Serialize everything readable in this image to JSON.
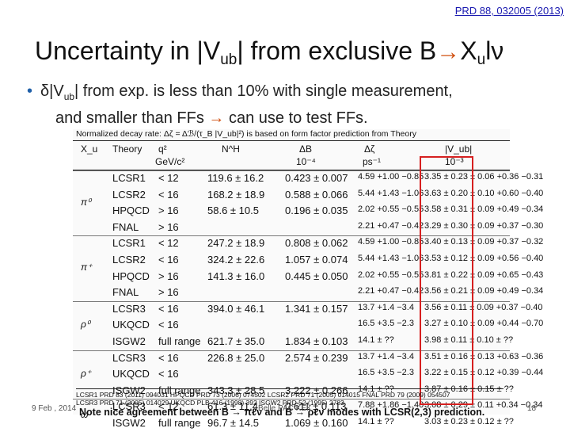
{
  "reference": "PRD 88, 032005 (2013)",
  "title": {
    "pre": "Uncertainty in |V",
    "sub": "ub",
    "mid": "| from exclusive B",
    "arrow": "→",
    "post_a": "X",
    "post_sub": "u",
    "post_b": "l",
    "nu": "ν"
  },
  "bullet": {
    "dot": "•",
    "delta": "δ|V",
    "sub": "ub",
    "line1_rest": "| from exp. is less than 10% with single measurement,",
    "line2_a": "and smaller than FFs",
    "arrow": "→",
    "line2_b": "can use to test FFs."
  },
  "table": {
    "note": "Normalized decay rate: Δζ = Δℬ/(τ_B |V_ub|²) is based on form factor prediction from Theory",
    "headers": {
      "xu": "X_u",
      "theory": "Theory",
      "q2": "q²",
      "q2_unit": "GeV/c²",
      "nH": "N^H",
      "dB": "ΔB",
      "dB_unit": "10⁻⁴",
      "dz": "Δζ",
      "dz_unit": "ps⁻¹",
      "vub": "|V_ub|",
      "vub_unit": "10⁻³"
    },
    "groups": [
      {
        "xu": "π⁰",
        "rows": [
          {
            "theory": "LCSR1",
            "q2": "< 12",
            "nh": "119.6 ± 16.2",
            "db": "0.423 ± 0.007",
            "dz": "4.59 +1.00 −0.85",
            "vub": "3.35 ± 0.23 ± 0.06 +0.36 −0.31"
          },
          {
            "theory": "LCSR2",
            "q2": "< 16",
            "nh": "168.2 ± 18.9",
            "db": "0.588 ± 0.066",
            "dz": "5.44 +1.43 −1.06",
            "vub": "3.63 ± 0.20 ± 0.10 +0.60 −0.40"
          },
          {
            "theory": "HPQCD",
            "q2": "> 16",
            "nh": "58.6 ± 10.5",
            "db": "0.196 ± 0.035",
            "dz": "2.02 +0.55 −0.55",
            "vub": "3.58 ± 0.31 ± 0.09 +0.49 −0.34"
          },
          {
            "theory": "FNAL",
            "q2": "> 16",
            "nh": "",
            "db": "",
            "dz": "2.21 +0.47 −0.42",
            "vub": "3.29 ± 0.30 ± 0.09 +0.37 −0.30"
          }
        ]
      },
      {
        "xu": "π⁺",
        "rows": [
          {
            "theory": "LCSR1",
            "q2": "< 12",
            "nh": "247.2 ± 18.9",
            "db": "0.808 ± 0.062",
            "dz": "4.59 +1.00 −0.85",
            "vub": "3.40 ± 0.13 ± 0.09 +0.37 −0.32"
          },
          {
            "theory": "LCSR2",
            "q2": "< 16",
            "nh": "324.2 ± 22.6",
            "db": "1.057 ± 0.074",
            "dz": "5.44 +1.43 −1.06",
            "vub": "3.53 ± 0.12 ± 0.09 +0.56 −0.40"
          },
          {
            "theory": "HPQCD",
            "q2": "> 16",
            "nh": "141.3 ± 16.0",
            "db": "0.445 ± 0.050",
            "dz": "2.02 +0.55 −0.55",
            "vub": "3.81 ± 0.22 ± 0.09 +0.65 −0.43"
          },
          {
            "theory": "FNAL",
            "q2": "> 16",
            "nh": "",
            "db": "",
            "dz": "2.21 +0.47 −0.42",
            "vub": "3.56 ± 0.21 ± 0.09 +0.49 −0.34"
          }
        ]
      },
      {
        "xu": "ρ⁰",
        "rows": [
          {
            "theory": "LCSR3",
            "q2": "< 16",
            "nh": "394.0 ± 46.1",
            "db": "1.341 ± 0.157",
            "dz": "13.7 +1.4 −3.4",
            "vub": "3.56 ± 0.11 ± 0.09 +0.37 −0.40"
          },
          {
            "theory": "UKQCD",
            "q2": "< 16",
            "nh": "",
            "db": "",
            "dz": "16.5 +3.5 −2.3",
            "vub": "3.27 ± 0.10 ± 0.09 +0.44 −0.70"
          },
          {
            "theory": "ISGW2",
            "q2": "full range",
            "nh": "621.7 ± 35.0",
            "db": "1.834 ± 0.103",
            "dz": "14.1 ± ??",
            "vub": "3.98 ± 0.11 ± 0.10 ± ??"
          }
        ]
      },
      {
        "xu": "ρ⁺",
        "rows": [
          {
            "theory": "LCSR3",
            "q2": "< 16",
            "nh": "226.8 ± 25.0",
            "db": "2.574 ± 0.239",
            "dz": "13.7 +1.4 −3.4",
            "vub": "3.51 ± 0.16 ± 0.13 +0.63 −0.36"
          },
          {
            "theory": "UKQCD",
            "q2": "< 16",
            "nh": "",
            "db": "",
            "dz": "16.5 +3.5 −2.3",
            "vub": "3.22 ± 0.15 ± 0.12 +0.39 −0.44"
          },
          {
            "theory": "ISGW2",
            "q2": "full range",
            "nh": "343.3 ± 28.5",
            "db": "3.222 ± 0.266",
            "dz": "14.1 ± ??",
            "vub": "3.87 ± 0.16 ± 0.15 ± ??"
          }
        ]
      },
      {
        "xu": "ω",
        "rows": [
          {
            "theory": "LCSR3",
            "q2": "< 12",
            "nh": "61.3 ± 11.4",
            "db": "0.611 ± 0.113",
            "dz": "7.88 +1.86 −1.40",
            "vub": "3.08 ± 0.29 ± 0.11 +0.34 −0.34"
          },
          {
            "theory": "ISGW2",
            "q2": "full range",
            "nh": "96.7 ± 14.5",
            "db": "1.069 ± 0.160",
            "dz": "14.1 ± ??",
            "vub": "3.03 ± 0.23 ± 0.12 ± ??"
          }
        ]
      }
    ],
    "footnotes": [
      "LCSR1  PRD 83 (2011) 094031   HPQCD  PRD 73 (2006) 074502   LCSR2  PRD 71 (2005) 014015   FNAL  PRD 79 (2009) 054507",
      "LCSR3  PRD 71 (2005) 014029   UKQCD  PLB 416 (1998) 392   ISGW2  PRD 52 (1995) 2783"
    ],
    "bottom_note": "Note nice agreement between B → πℓν and B → ρℓν modes with LCSR(2,3) prediction."
  },
  "footer": {
    "date": "9 Feb , 2014",
    "conference": "Belle PAC  KEK",
    "page": "18"
  },
  "colors": {
    "arrow": "#d05010",
    "bullet": "#1f5fa8",
    "box": "#d62020",
    "link": "#1a1ab0"
  }
}
